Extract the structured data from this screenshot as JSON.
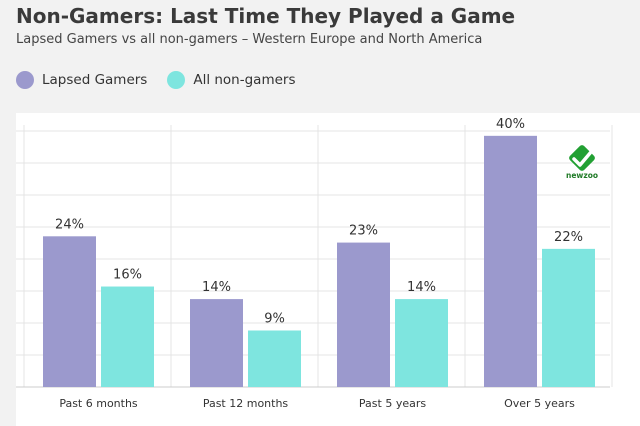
{
  "title": "Non-Gamers: Last Time They Played a Game",
  "subtitle": "Lapsed Gamers vs all non-gamers – Western Europe and North America",
  "logo_text": "newzoo",
  "colors": {
    "lapsed": "#9b99cd",
    "nongamers": "#7ee5df",
    "gridline": "#e4e4e4",
    "axis": "#cccccc",
    "logo_green": "#22a033"
  },
  "chart_data": {
    "type": "bar",
    "title": "Non-Gamers: Last Time They Played a Game",
    "subtitle": "Lapsed Gamers vs all non-gamers – Western Europe and North America",
    "categories": [
      "Past 6 months",
      "Past 12 months",
      "Past 5 years",
      "Over 5 years"
    ],
    "series": [
      {
        "name": "Lapsed Gamers",
        "values": [
          24,
          14,
          23,
          40
        ],
        "labels": [
          "24%",
          "14%",
          "23%",
          "40%"
        ],
        "color": "#9b99cd"
      },
      {
        "name": "All non-gamers",
        "values": [
          16,
          9,
          14,
          22
        ],
        "labels": [
          "16%",
          "9%",
          "14%",
          "22%"
        ],
        "color": "#7ee5df"
      }
    ],
    "ylim": [
      0,
      43
    ],
    "legend": "top-left",
    "grid": true
  }
}
